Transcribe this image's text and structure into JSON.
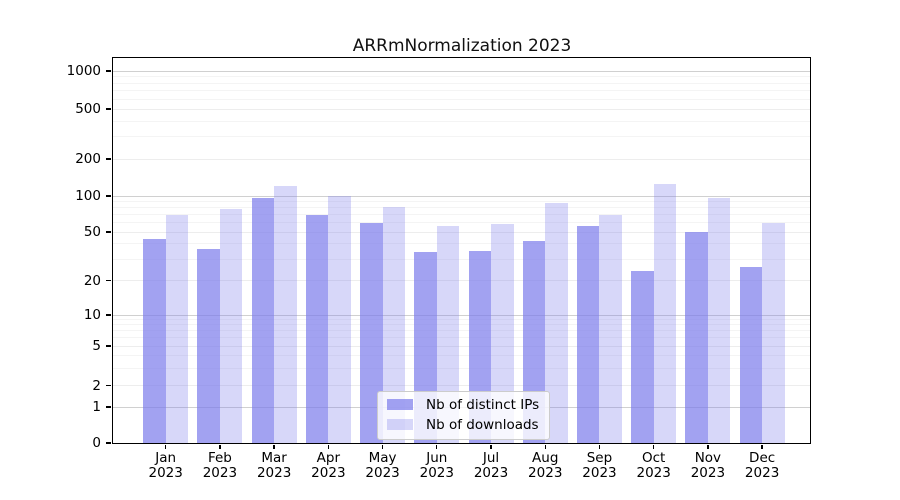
{
  "chart_data": {
    "type": "bar",
    "title": "ARRmNormalization 2023",
    "categories": [
      "Jan",
      "Feb",
      "Mar",
      "Apr",
      "May",
      "Jun",
      "Jul",
      "Aug",
      "Sep",
      "Oct",
      "Nov",
      "Dec"
    ],
    "year": "2023",
    "series": [
      {
        "name": "Nb of distinct IPs",
        "color": "rgba(123,123,235,0.7)",
        "legend_hex": "#a6a6ee",
        "values": [
          44,
          36,
          97,
          69,
          60,
          34,
          35,
          42,
          56,
          24,
          50,
          26
        ]
      },
      {
        "name": "Nb of downloads",
        "color": "rgba(123,123,235,0.3)",
        "legend_hex": "#dcdcf7",
        "values": [
          70,
          78,
          121,
          100,
          81,
          56,
          58,
          87,
          70,
          126,
          97,
          60
        ]
      }
    ],
    "xlabel": "",
    "ylabel": "",
    "yscale": "symlog",
    "yticks": [
      0,
      1,
      2,
      5,
      10,
      20,
      50,
      100,
      200,
      500,
      1000
    ],
    "ylim": [
      0,
      1300
    ],
    "grid": true,
    "legend_position": "lower center",
    "background_color": "#ffffff",
    "frame_color": "#000000"
  }
}
